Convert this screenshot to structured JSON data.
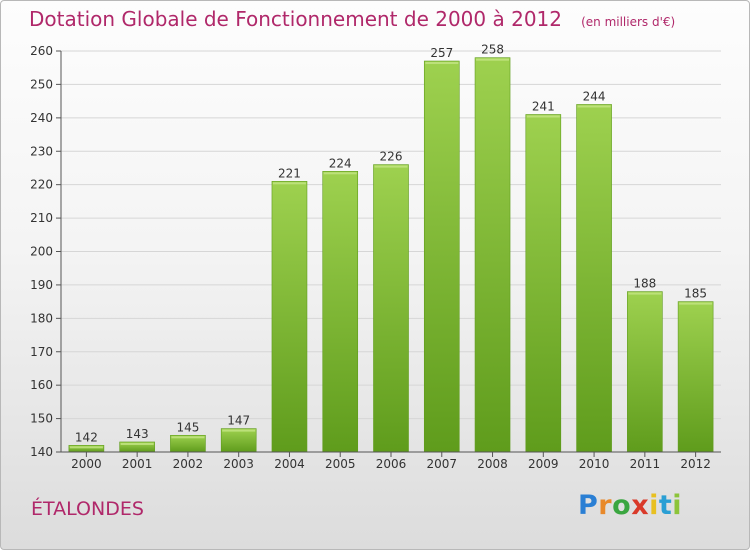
{
  "chart_data": {
    "type": "bar",
    "title": "Dotation Globale de Fonctionnement de 2000 à 2012",
    "unit_note": "(en milliers d'€)",
    "categories": [
      "2000",
      "2001",
      "2002",
      "2003",
      "2004",
      "2005",
      "2006",
      "2007",
      "2008",
      "2009",
      "2010",
      "2011",
      "2012"
    ],
    "values": [
      142,
      143,
      145,
      147,
      221,
      224,
      226,
      257,
      258,
      241,
      244,
      188,
      185
    ],
    "ylim": [
      140,
      260
    ],
    "yticks": [
      140,
      150,
      160,
      170,
      180,
      190,
      200,
      210,
      220,
      230,
      240,
      250,
      260
    ],
    "grid": true,
    "legend": "none",
    "bar_color": "#7cbc34",
    "bar_color_light": "#9ed14f",
    "bar_color_dark": "#5f9c1c"
  },
  "place_name": "ÉTALONDES",
  "logo": {
    "letters": [
      "P",
      "r",
      "o",
      "x",
      "i",
      "t",
      "i"
    ],
    "colors": [
      "#2a7fd4",
      "#e8892a",
      "#3aa640",
      "#d93a2a",
      "#e8c020",
      "#2a9fd4",
      "#8cc43a"
    ]
  }
}
